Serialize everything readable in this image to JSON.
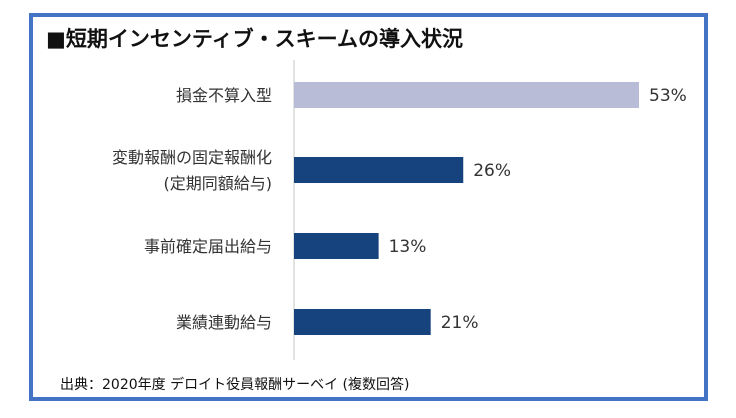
{
  "title": "■短期インセンティブ・スキームの導入状況",
  "source": "出典：2020年度 デロイト役員報酬サーベイ (複数回答)",
  "colors": {
    "frame": "#4472c4",
    "highlight": "#b8bcd6",
    "bar": "#16437e",
    "axis": "#d9d9d9"
  },
  "chart_data": {
    "type": "bar",
    "orientation": "horizontal",
    "categories": [
      [
        "損金不算入型"
      ],
      [
        "変動報酬の固定報酬化",
        "(定期同額給与)"
      ],
      [
        "事前確定届出給与"
      ],
      [
        "業績連動給与"
      ]
    ],
    "values": [
      53,
      26,
      13,
      21
    ],
    "value_labels": [
      "53%",
      "26%",
      "13%",
      "21%"
    ],
    "xlim": [
      0,
      53
    ],
    "grid": false,
    "legend": "none"
  }
}
